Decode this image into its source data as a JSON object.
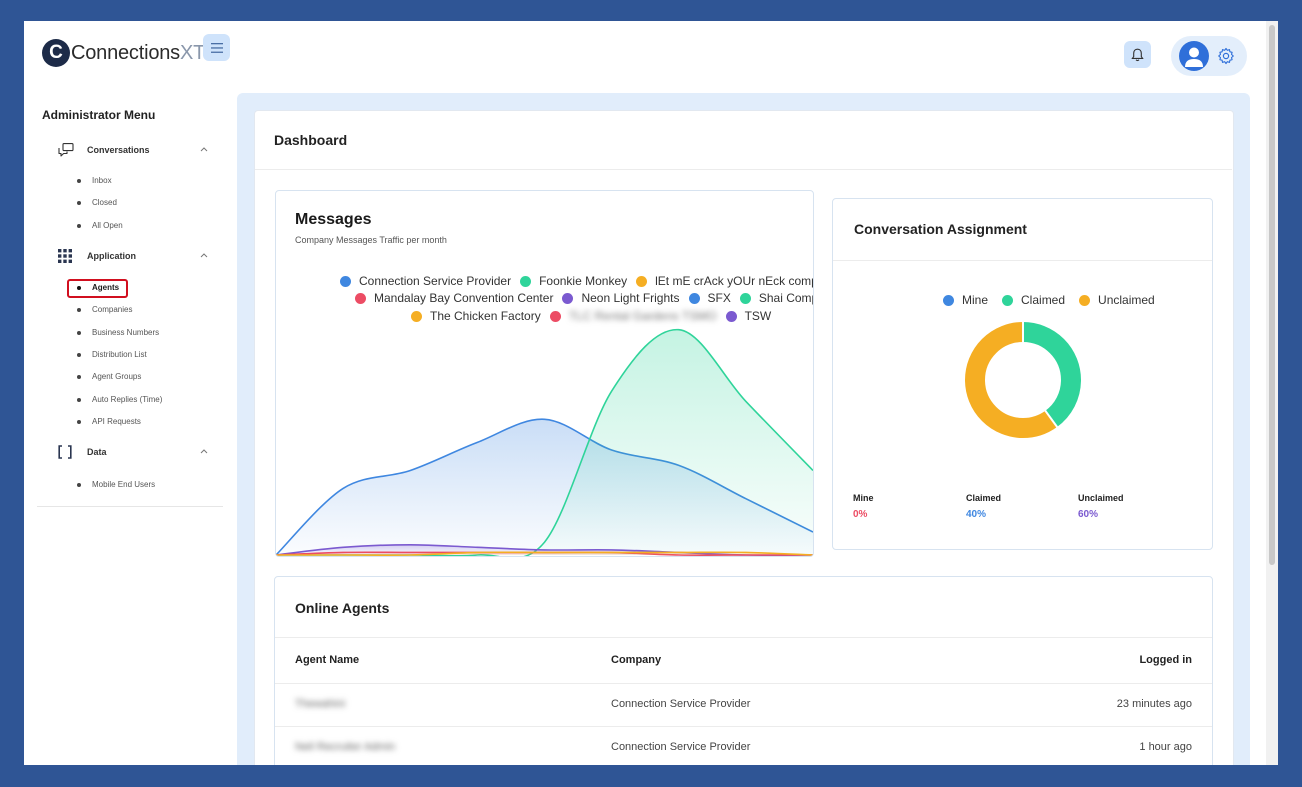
{
  "header": {
    "logo_mark": "C",
    "logo_name": "Connections",
    "logo_suffix": "XT",
    "logo_tm": "™"
  },
  "sidebar": {
    "title": "Administrator Menu",
    "sections": [
      {
        "label": "Conversations",
        "icon": "chat-bubbles-icon",
        "items": [
          "Inbox",
          "Closed",
          "All Open"
        ]
      },
      {
        "label": "Application",
        "icon": "grid-icon",
        "items": [
          "Agents",
          "Companies",
          "Business Numbers",
          "Distribution List",
          "Agent Groups",
          "Auto Replies (Time)",
          "API Requests"
        ]
      },
      {
        "label": "Data",
        "icon": "brackets-icon",
        "items": [
          "Mobile End Users"
        ]
      }
    ],
    "active_item": "Agents"
  },
  "dashboard": {
    "title": "Dashboard"
  },
  "messages": {
    "title": "Messages",
    "subtitle": "Company Messages Traffic per month",
    "legend": [
      {
        "name": "Connection Service Provider",
        "color": "#3f87e0"
      },
      {
        "name": "Foonkie Monkey",
        "color": "#2fd49a"
      },
      {
        "name": "lEt mE crAck yOUr nEck compar",
        "color": "#f5ae23"
      },
      {
        "name": "Mandalay Bay Convention Center",
        "color": "#ec4c64"
      },
      {
        "name": "Neon Light Frights",
        "color": "#7b5ad0"
      },
      {
        "name": "SFX",
        "color": "#3f87e0"
      },
      {
        "name": "Shai Compa",
        "color": "#2fd49a"
      },
      {
        "name": "The Chicken Factory",
        "color": "#f5ae23"
      },
      {
        "name": "TLC Rental Gardens TSMO",
        "color": "#ec4c64"
      },
      {
        "name": "TSW",
        "color": "#7b5ad0"
      }
    ]
  },
  "chart_data": {
    "type": "area",
    "title": "Messages",
    "subtitle": "Company Messages Traffic per month",
    "x": [
      0,
      1,
      2,
      3,
      4,
      5,
      6,
      7,
      8
    ],
    "ylim": [
      0,
      100
    ],
    "series": [
      {
        "name": "Connection Service Provider",
        "color": "#3f87e0",
        "values": [
          0,
          26,
          33,
          44,
          53,
          41,
          35,
          22,
          9
        ]
      },
      {
        "name": "Foonkie Monkey",
        "color": "#2fd49a",
        "values": [
          0,
          0,
          0,
          0,
          5,
          64,
          88,
          60,
          33
        ]
      },
      {
        "name": "Neon Light Frights",
        "color": "#7b5ad0",
        "values": [
          0,
          3,
          4,
          3,
          2,
          2,
          1,
          0,
          0
        ]
      },
      {
        "name": "Mandalay Bay Convention Center",
        "color": "#ec4c64",
        "values": [
          0,
          1,
          1,
          1,
          1,
          1,
          0,
          0,
          0
        ]
      },
      {
        "name": "lEt mE crAck yOUr nEck compar",
        "color": "#f5ae23",
        "values": [
          0,
          0,
          0,
          1,
          1,
          1,
          1,
          1,
          0
        ]
      }
    ]
  },
  "assignment": {
    "title": "Conversation Assignment",
    "legend": [
      {
        "name": "Mine",
        "color": "#3f87e0"
      },
      {
        "name": "Claimed",
        "color": "#2fd49a"
      },
      {
        "name": "Unclaimed",
        "color": "#f5ae23"
      }
    ],
    "donut": [
      {
        "name": "Mine",
        "value": 0,
        "color": "#3f87e0"
      },
      {
        "name": "Claimed",
        "value": 40,
        "color": "#2fd49a"
      },
      {
        "name": "Unclaimed",
        "value": 60,
        "color": "#f5ae23"
      }
    ],
    "stats": [
      {
        "label": "Mine",
        "value": "0%",
        "color": "#ec4c64"
      },
      {
        "label": "Claimed",
        "value": "40%",
        "color": "#3f87e0"
      },
      {
        "label": "Unclaimed",
        "value": "60%",
        "color": "#7b5ad0"
      }
    ]
  },
  "online_agents": {
    "title": "Online Agents",
    "columns": [
      "Agent Name",
      "Company",
      "Logged in"
    ],
    "rows": [
      {
        "name": "Thewahini",
        "company": "Connection Service Provider",
        "logged_in": "23 minutes ago"
      },
      {
        "name": "Neil Recruiter Admin",
        "company": "Connection Service Provider",
        "logged_in": "1 hour ago"
      }
    ]
  }
}
